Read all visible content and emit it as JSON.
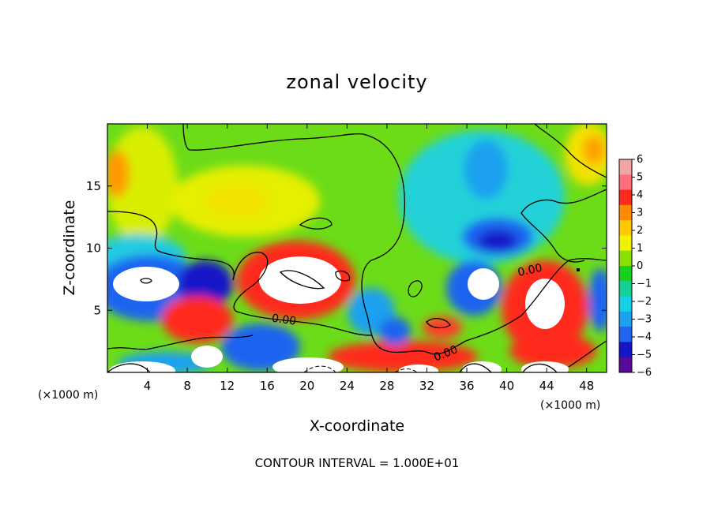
{
  "chart_data": {
    "type": "heatmap",
    "title": "zonal velocity",
    "xlabel": "X-coordinate",
    "ylabel": "Z-coordinate",
    "x_unit": "(×1000 m)",
    "x_ticks": [
      4,
      8,
      12,
      16,
      20,
      24,
      28,
      32,
      36,
      40,
      44,
      48
    ],
    "y_ticks": [
      5,
      10,
      15
    ],
    "xlim": [
      0,
      50
    ],
    "ylim": [
      0,
      20
    ],
    "colorbar": {
      "levels": [
        6,
        5,
        4,
        3,
        2,
        1,
        0,
        -1,
        -2,
        -3,
        -4,
        -5,
        -6
      ],
      "colors": [
        "#f3a5a5",
        "#ff6e7a",
        "#ff2a1e",
        "#ff8c00",
        "#ffc800",
        "#f2f200",
        "#8ce000",
        "#16d21e",
        "#14d296",
        "#14d2e6",
        "#1ea0f0",
        "#1e64f0",
        "#1414c8",
        "#5a0a96"
      ]
    },
    "contour_labels": [
      "0.00",
      "0.00",
      "0.00"
    ],
    "note": "CONTOUR INTERVAL = 1.000E+01"
  }
}
